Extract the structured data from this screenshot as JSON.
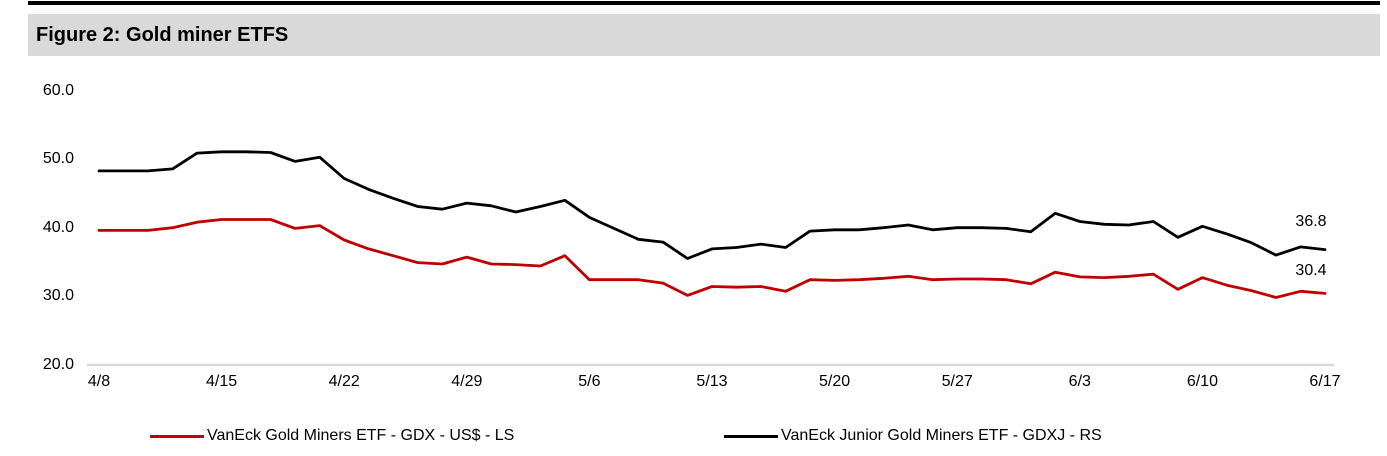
{
  "figure": {
    "title": "Figure 2: Gold miner ETFS"
  },
  "colors": {
    "title_bar_bg": "#d9d9d9",
    "top_rule": "#000000",
    "axis_line": "#d9d9d9",
    "gdx_red": "#c00000",
    "gdxj_black": "#000000"
  },
  "chart_data": {
    "type": "line",
    "title": "Figure 2: Gold miner ETFS",
    "xlabel": "",
    "ylabel": "",
    "ylim": [
      20,
      60
    ],
    "grid": false,
    "legend_position": "bottom",
    "x": [
      "4/8",
      "4/9",
      "4/10",
      "4/11",
      "4/12",
      "4/15",
      "4/16",
      "4/17",
      "4/18",
      "4/19",
      "4/22",
      "4/23",
      "4/24",
      "4/25",
      "4/26",
      "4/29",
      "4/30",
      "5/1",
      "5/2",
      "5/3",
      "5/6",
      "5/7",
      "5/8",
      "5/9",
      "5/10",
      "5/13",
      "5/14",
      "5/15",
      "5/16",
      "5/17",
      "5/20",
      "5/21",
      "5/22",
      "5/23",
      "5/24",
      "5/27",
      "5/28",
      "5/29",
      "5/30",
      "5/31",
      "6/3",
      "6/4",
      "6/5",
      "6/6",
      "6/7",
      "6/10",
      "6/11",
      "6/12",
      "6/13",
      "6/14",
      "6/17"
    ],
    "x_ticks": [
      {
        "label": "4/8",
        "index": 0
      },
      {
        "label": "4/15",
        "index": 5
      },
      {
        "label": "4/22",
        "index": 10
      },
      {
        "label": "4/29",
        "index": 15
      },
      {
        "label": "5/6",
        "index": 20
      },
      {
        "label": "5/13",
        "index": 25
      },
      {
        "label": "5/20",
        "index": 30
      },
      {
        "label": "5/27",
        "index": 35
      },
      {
        "label": "6/3",
        "index": 40
      },
      {
        "label": "6/10",
        "index": 45
      },
      {
        "label": "6/17",
        "index": 50
      }
    ],
    "y_ticks": [
      {
        "label": "60.0",
        "value": 60
      },
      {
        "label": "50.0",
        "value": 50
      },
      {
        "label": "40.0",
        "value": 40
      },
      {
        "label": "30.0",
        "value": 30
      },
      {
        "label": "20.0",
        "value": 20
      }
    ],
    "series": [
      {
        "name": "VanEck Gold Miners ETF  - GDX  - US$ - LS",
        "ticker": "GDX",
        "scale": "LS",
        "color": "#c00000",
        "end_label": "30.4",
        "values": [
          39.6,
          39.6,
          39.6,
          40.0,
          40.8,
          41.2,
          41.2,
          41.2,
          39.9,
          40.3,
          38.2,
          36.9,
          35.9,
          34.9,
          34.7,
          35.7,
          34.7,
          34.6,
          34.4,
          35.9,
          32.4,
          32.4,
          32.4,
          31.9,
          30.1,
          31.4,
          31.3,
          31.4,
          30.7,
          32.4,
          32.3,
          32.4,
          32.6,
          32.9,
          32.4,
          32.5,
          32.5,
          32.4,
          31.8,
          33.5,
          32.8,
          32.7,
          32.9,
          33.2,
          31.0,
          32.7,
          31.6,
          30.8,
          29.8,
          30.7,
          30.4
        ]
      },
      {
        "name": "VanEck Junior Gold Miners ETF - GDXJ - RS",
        "ticker": "GDXJ",
        "scale": "RS",
        "color": "#000000",
        "end_label": "36.8",
        "values": [
          48.3,
          48.3,
          48.3,
          48.6,
          50.9,
          51.1,
          51.1,
          51.0,
          49.7,
          50.3,
          47.2,
          45.6,
          44.3,
          43.1,
          42.7,
          43.6,
          43.2,
          42.3,
          43.1,
          44.0,
          41.5,
          39.9,
          38.3,
          37.9,
          35.5,
          36.9,
          37.1,
          37.6,
          37.1,
          39.5,
          39.7,
          39.7,
          40.0,
          40.4,
          39.7,
          40.0,
          40.0,
          39.9,
          39.4,
          42.1,
          40.9,
          40.5,
          40.4,
          40.9,
          38.6,
          40.2,
          39.1,
          37.8,
          36.0,
          37.2,
          36.8
        ]
      }
    ]
  }
}
